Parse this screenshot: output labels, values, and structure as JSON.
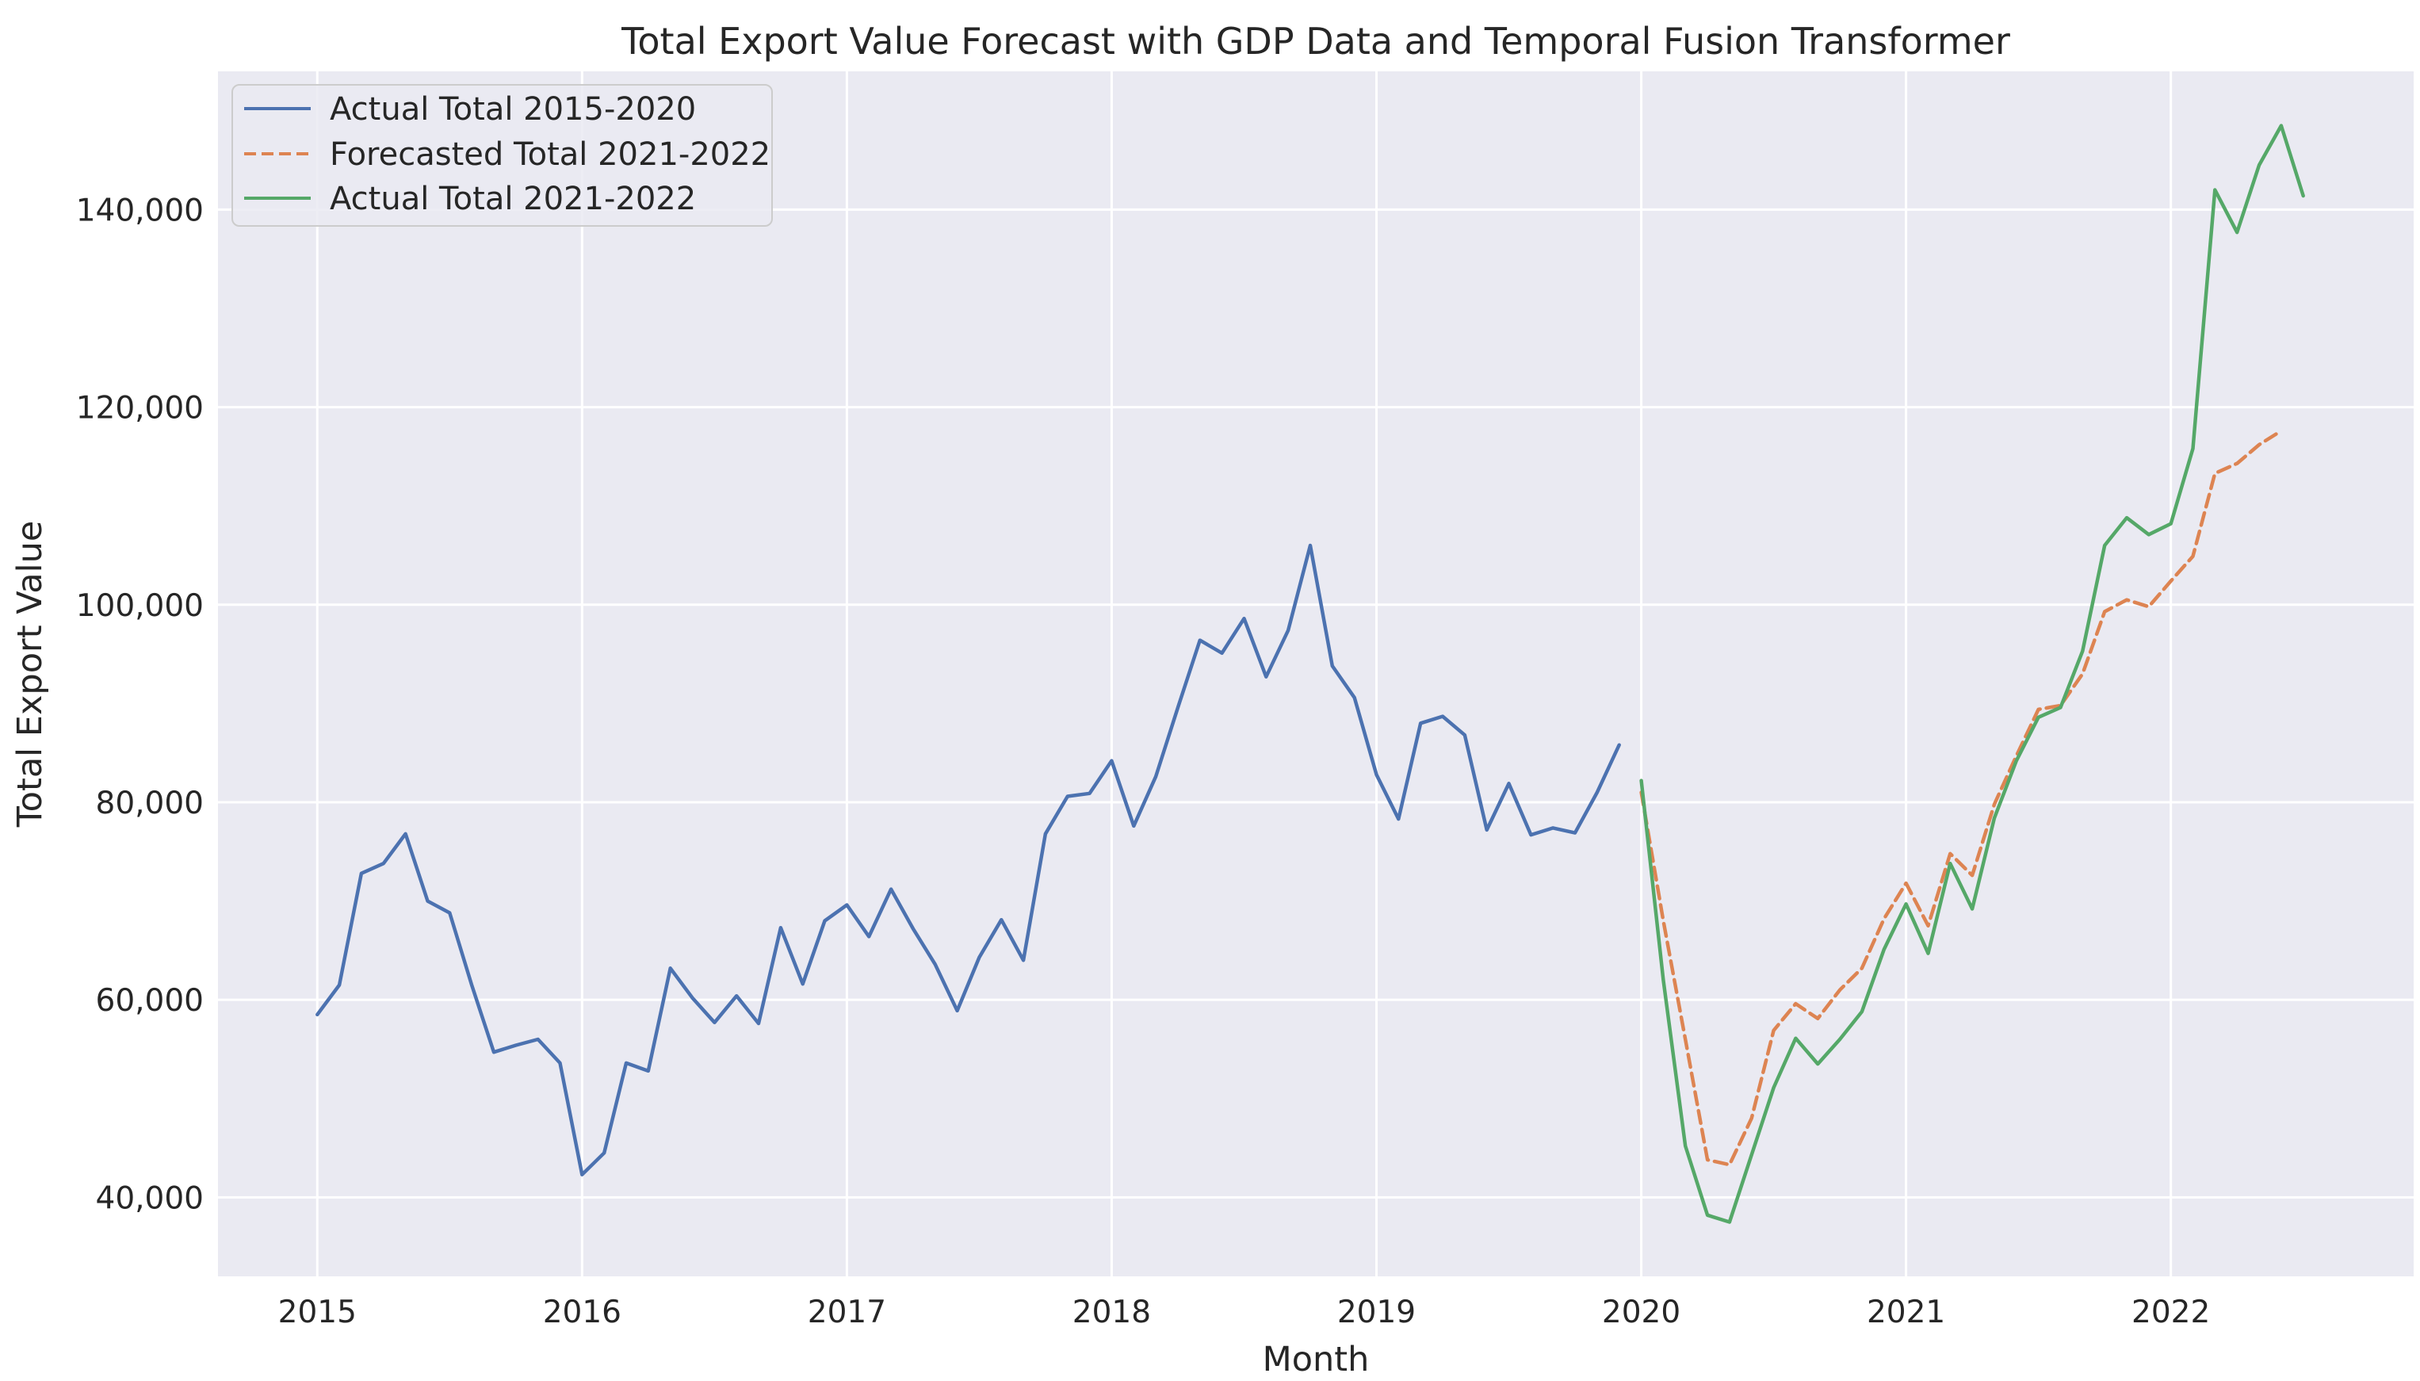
{
  "chart_data": {
    "type": "line",
    "title": "Total Export Value Forecast with GDP Data and Temporal Fusion Transformer",
    "xlabel": "Month",
    "ylabel": "Total Export Value",
    "xlim": [
      2014.625,
      2022.917
    ],
    "ylim": [
      32000,
      154000
    ],
    "x_ticks": [
      {
        "value": 2015,
        "label": "2015"
      },
      {
        "value": 2016,
        "label": "2016"
      },
      {
        "value": 2017,
        "label": "2017"
      },
      {
        "value": 2018,
        "label": "2018"
      },
      {
        "value": 2019,
        "label": "2019"
      },
      {
        "value": 2020,
        "label": "2020"
      },
      {
        "value": 2021,
        "label": "2021"
      },
      {
        "value": 2022,
        "label": "2022"
      }
    ],
    "y_ticks": [
      {
        "value": 40000,
        "label": "40,000"
      },
      {
        "value": 60000,
        "label": "60,000"
      },
      {
        "value": 80000,
        "label": "80,000"
      },
      {
        "value": 100000,
        "label": "100,000"
      },
      {
        "value": 120000,
        "label": "120,000"
      },
      {
        "value": 140000,
        "label": "140,000"
      }
    ],
    "grid": true,
    "legend_position": "top-left",
    "series": [
      {
        "name": "Actual Total 2015-2020",
        "color": "#4c72b0",
        "style": "solid",
        "start": 2015,
        "values": [
          58500,
          61500,
          72800,
          73800,
          76800,
          70000,
          68800,
          61500,
          54700,
          55400,
          56000,
          53600,
          42300,
          44500,
          53600,
          52800,
          63200,
          60200,
          57700,
          60400,
          57600,
          67300,
          61600,
          68000,
          69600,
          66400,
          71200,
          67200,
          63600,
          58900,
          64300,
          68100,
          64000,
          76800,
          80600,
          80900,
          84200,
          77600,
          82600,
          89600,
          96400,
          95100,
          98600,
          92700,
          97400,
          106000,
          93800,
          90600,
          82800,
          78300,
          88000,
          88700,
          86800,
          77200,
          81900,
          76700,
          77400,
          76900,
          81000,
          85800
        ]
      },
      {
        "name": "Forecasted Total 2021-2022",
        "color": "#dd8452",
        "style": "dashed",
        "start": 2020,
        "values": [
          81000,
          68000,
          56000,
          43800,
          43300,
          48000,
          56900,
          59600,
          58100,
          61000,
          63200,
          68200,
          71800,
          67500,
          74800,
          72600,
          79800,
          84700,
          89400,
          89800,
          93000,
          99300,
          100500,
          99800,
          102400,
          104900,
          113300,
          114300,
          116200,
          117600
        ]
      },
      {
        "name": "Actual Total 2021-2022",
        "color": "#55a868",
        "style": "solid",
        "start": 2020,
        "values": [
          82200,
          62000,
          45200,
          38200,
          37500,
          44300,
          51100,
          56100,
          53500,
          56000,
          58800,
          65100,
          69700,
          64700,
          73800,
          69200,
          78400,
          84200,
          88600,
          89600,
          95300,
          106000,
          108800,
          107100,
          108200,
          115800,
          142000,
          137700,
          144500,
          148500,
          141400
        ]
      }
    ]
  }
}
